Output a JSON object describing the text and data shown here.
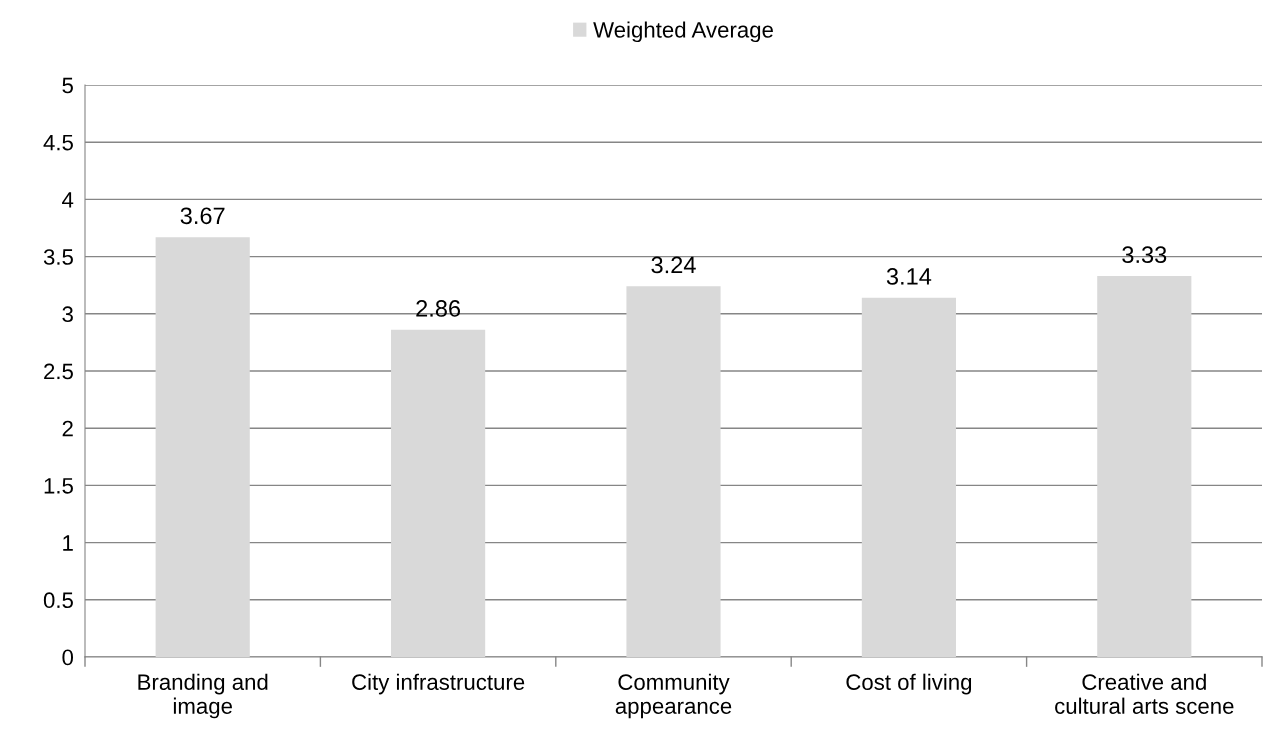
{
  "chart_data": {
    "type": "bar",
    "categories": [
      "Branding and\nimage",
      "City infrastructure",
      "Community\nappearance",
      "Cost of living",
      "Creative and\ncultural arts scene"
    ],
    "series": [
      {
        "name": "Weighted Average",
        "color": "#d9d9d9",
        "values": [
          3.67,
          2.86,
          3.24,
          3.14,
          3.33
        ]
      }
    ],
    "ylim": [
      0,
      5
    ],
    "yticks": [
      0,
      0.5,
      1,
      1.5,
      2,
      2.5,
      3,
      3.5,
      4,
      4.5,
      5
    ],
    "grid": "y",
    "legend": "top",
    "data_labels": true
  }
}
